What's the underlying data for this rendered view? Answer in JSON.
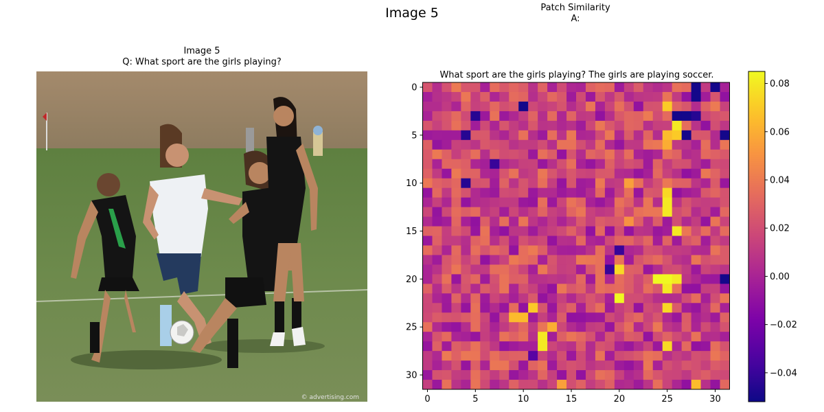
{
  "figure": {
    "suptitle": "Image 5",
    "left_panel": {
      "title_line1": "Image 5",
      "title_line2": "Q: What sport are the girls playing?"
    },
    "right_panel": {
      "header_line1": "Patch Similarity",
      "header_line2": "A:"
    },
    "watermark": "© advertising.com"
  },
  "chart_data": {
    "type": "heatmap",
    "title": "What sport are the girls playing? The girls are playing soccer.",
    "grid_size": [
      32,
      32
    ],
    "x_ticks": [
      0,
      5,
      10,
      15,
      20,
      25,
      30
    ],
    "y_ticks": [
      0,
      5,
      10,
      15,
      20,
      25,
      30
    ],
    "colorbar": {
      "min": -0.052,
      "max": 0.085,
      "ticks": [
        -0.04,
        -0.02,
        0.0,
        0.02,
        0.04,
        0.06,
        0.08
      ],
      "tick_labels": [
        "−0.04",
        "−0.02",
        "0.00",
        "0.02",
        "0.04",
        "0.06",
        "0.08"
      ],
      "colormap": "plasma"
    },
    "grid": false,
    "base_value": 0.015,
    "highlights": [
      {
        "row": 2,
        "col": 25,
        "value": 0.07
      },
      {
        "row": 3,
        "col": 26,
        "value": -0.05
      },
      {
        "row": 3,
        "col": 27,
        "value": -0.05
      },
      {
        "row": 3,
        "col": 28,
        "value": -0.045
      },
      {
        "row": 0,
        "col": 28,
        "value": -0.05
      },
      {
        "row": 1,
        "col": 28,
        "value": -0.05
      },
      {
        "row": 0,
        "col": 30,
        "value": -0.05
      },
      {
        "row": 2,
        "col": 10,
        "value": -0.05
      },
      {
        "row": 3,
        "col": 5,
        "value": -0.045
      },
      {
        "row": 5,
        "col": 31,
        "value": -0.05
      },
      {
        "row": 5,
        "col": 27,
        "value": -0.05
      },
      {
        "row": 5,
        "col": 4,
        "value": -0.045
      },
      {
        "row": 8,
        "col": 7,
        "value": -0.04
      },
      {
        "row": 10,
        "col": 4,
        "value": -0.045
      },
      {
        "row": 4,
        "col": 26,
        "value": 0.08
      },
      {
        "row": 5,
        "col": 25,
        "value": 0.065
      },
      {
        "row": 5,
        "col": 26,
        "value": 0.07
      },
      {
        "row": 6,
        "col": 25,
        "value": 0.06
      },
      {
        "row": 11,
        "col": 25,
        "value": 0.075
      },
      {
        "row": 12,
        "col": 25,
        "value": 0.08
      },
      {
        "row": 13,
        "col": 25,
        "value": 0.08
      },
      {
        "row": 10,
        "col": 21,
        "value": 0.055
      },
      {
        "row": 15,
        "col": 26,
        "value": 0.08
      },
      {
        "row": 14,
        "col": 21,
        "value": 0.05
      },
      {
        "row": 19,
        "col": 20,
        "value": 0.075
      },
      {
        "row": 20,
        "col": 24,
        "value": 0.085
      },
      {
        "row": 20,
        "col": 25,
        "value": 0.085
      },
      {
        "row": 20,
        "col": 26,
        "value": 0.08
      },
      {
        "row": 21,
        "col": 25,
        "value": 0.08
      },
      {
        "row": 22,
        "col": 20,
        "value": 0.085
      },
      {
        "row": 23,
        "col": 25,
        "value": 0.075
      },
      {
        "row": 23,
        "col": 11,
        "value": 0.07
      },
      {
        "row": 24,
        "col": 9,
        "value": 0.065
      },
      {
        "row": 24,
        "col": 10,
        "value": 0.065
      },
      {
        "row": 26,
        "col": 12,
        "value": 0.08
      },
      {
        "row": 27,
        "col": 12,
        "value": 0.08
      },
      {
        "row": 25,
        "col": 13,
        "value": 0.06
      },
      {
        "row": 27,
        "col": 25,
        "value": 0.075
      },
      {
        "row": 28,
        "col": 11,
        "value": -0.03
      },
      {
        "row": 20,
        "col": 31,
        "value": -0.05
      },
      {
        "row": 19,
        "col": 19,
        "value": -0.04
      },
      {
        "row": 17,
        "col": 20,
        "value": -0.04
      },
      {
        "row": 31,
        "col": 28,
        "value": 0.065
      },
      {
        "row": 31,
        "col": 14,
        "value": 0.055
      }
    ]
  }
}
